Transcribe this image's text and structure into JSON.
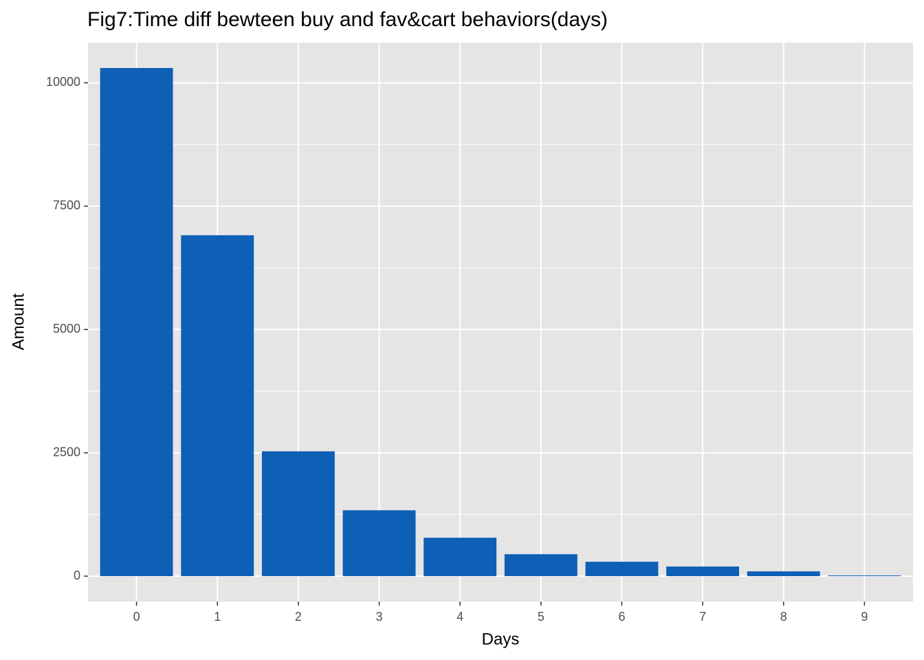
{
  "chart_data": {
    "type": "bar",
    "title": "Fig7:Time diff bewteen buy and fav&cart behaviors(days)",
    "x_label": "Days",
    "y_label": "Amount",
    "categories": [
      "0",
      "1",
      "2",
      "3",
      "4",
      "5",
      "6",
      "7",
      "8",
      "9"
    ],
    "values": [
      10300,
      6910,
      2530,
      1335,
      779,
      445,
      292,
      195,
      97,
      14
    ],
    "color": "#0e5fb6",
    "ylim": [
      -515,
      10815
    ],
    "yticks": [
      0,
      2500,
      5000,
      7500,
      10000
    ],
    "grid": true
  }
}
